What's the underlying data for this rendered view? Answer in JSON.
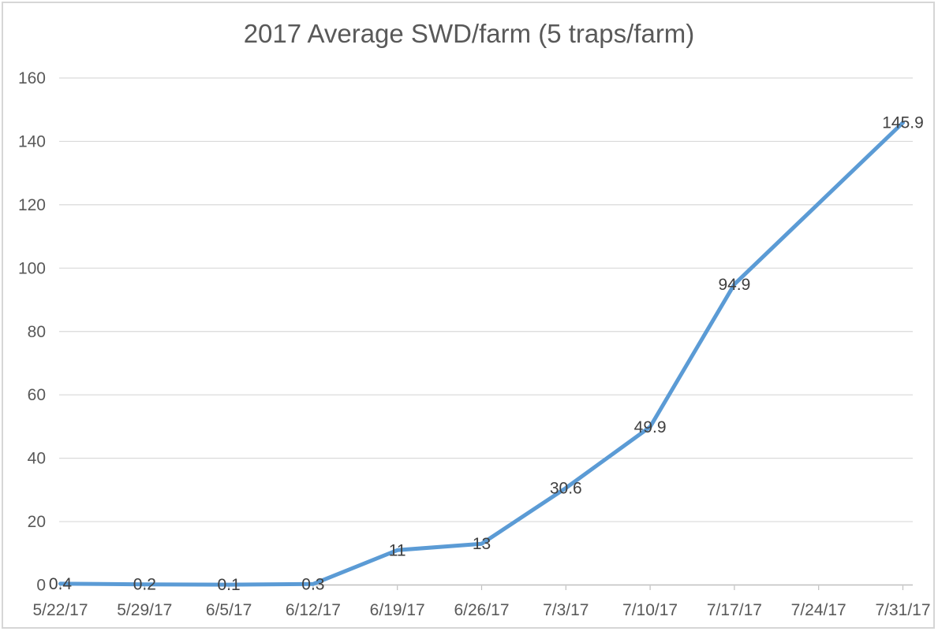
{
  "chart_data": {
    "type": "line",
    "title": "2017 Average SWD/farm (5 traps/farm)",
    "categories": [
      "5/22/17",
      "5/29/17",
      "6/5/17",
      "6/12/17",
      "6/19/17",
      "6/26/17",
      "7/3/17",
      "7/10/17",
      "7/17/17",
      "7/24/17",
      "7/31/17"
    ],
    "series": [
      {
        "values": [
          0.4,
          0.2,
          0.1,
          0.3,
          11,
          13,
          30.6,
          49.9,
          94.9,
          null,
          145.9
        ],
        "labels": [
          "0.4",
          "0.2",
          "0.1",
          "0.3",
          "11",
          "13",
          "30.6",
          "49.9",
          "94.9",
          null,
          "145.9"
        ],
        "color": "#5B9BD5"
      }
    ],
    "xlabel": "",
    "ylabel": "",
    "ylim": [
      0,
      160
    ],
    "ytick_step": 20,
    "ytick_labels": [
      "0",
      "20",
      "40",
      "60",
      "80",
      "100",
      "120",
      "140",
      "160"
    ],
    "grid": "horizontal",
    "legend": "none",
    "connect_gaps": true,
    "data_labels_position": "center",
    "colors": {
      "line": "#5B9BD5",
      "title_text": "#595959",
      "axis_text": "#595959",
      "data_label_text": "#404040",
      "gridline": "#D9D9D9",
      "axis_line": "#BFBFBF",
      "border": "#D6D6D6",
      "background": "#FFFFFF"
    }
  }
}
